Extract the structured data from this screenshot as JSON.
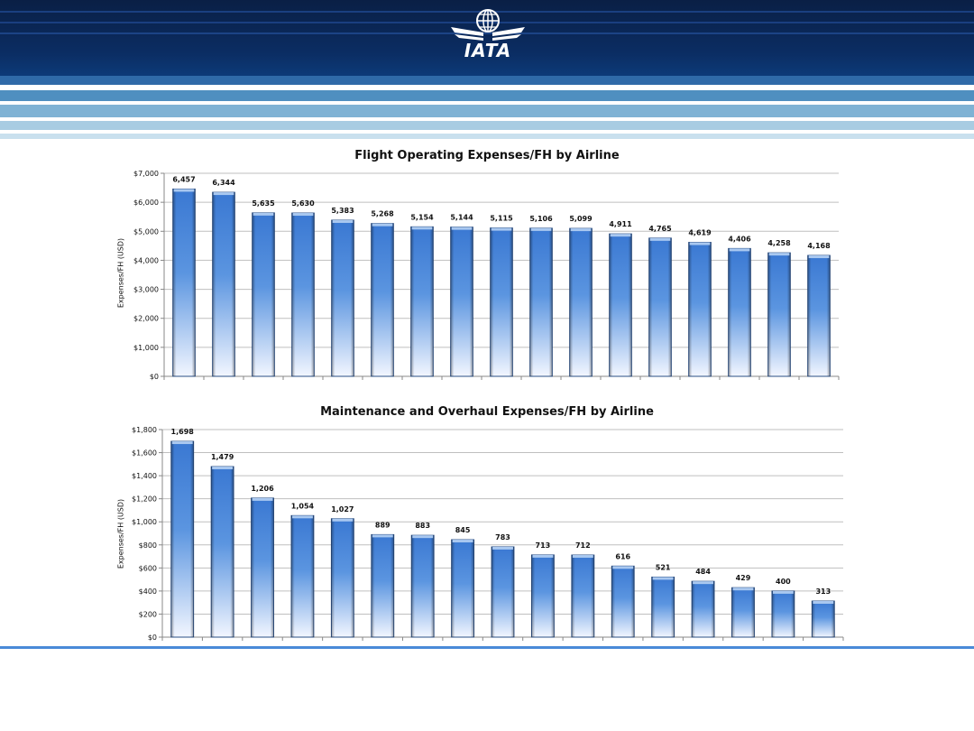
{
  "brand": {
    "logo_text": "IATA",
    "colors": {
      "navy": "#0a2a5e",
      "light_blue": "#9cc3dc",
      "bar": "#3f7fd6",
      "rule": "#4a8ad8"
    }
  },
  "icons": {
    "logo": "globe-wings-logo-icon"
  },
  "chart_data": [
    {
      "type": "bar",
      "title": "Flight Operating Expenses/FH by Airline",
      "xlabel": "",
      "ylabel": "Expenses/FH (USD)",
      "ylim": [
        0,
        7000
      ],
      "yticks": [
        0,
        1000,
        2000,
        3000,
        4000,
        5000,
        6000,
        7000
      ],
      "ytick_labels": [
        "$0",
        "$1,000",
        "$2,000",
        "$3,000",
        "$4,000",
        "$5,000",
        "$6,000",
        "$7,000"
      ],
      "values": [
        6457,
        6344,
        5635,
        5630,
        5383,
        5268,
        5154,
        5144,
        5115,
        5106,
        5099,
        4911,
        4765,
        4619,
        4406,
        4258,
        4168
      ],
      "value_labels": [
        "6,457",
        "6,344",
        "5,635",
        "5,630",
        "5,383",
        "5,268",
        "5,154",
        "5,144",
        "5,115",
        "5,106",
        "5,099",
        "4,911",
        "4,765",
        "4,619",
        "4,406",
        "4,258",
        "4,168"
      ],
      "grid": true,
      "legend": "none"
    },
    {
      "type": "bar",
      "title": "Maintenance and Overhaul Expenses/FH by Airline",
      "xlabel": "",
      "ylabel": "Expenses/FH (USD)",
      "ylim": [
        0,
        1800
      ],
      "yticks": [
        0,
        200,
        400,
        600,
        800,
        1000,
        1200,
        1400,
        1600,
        1800
      ],
      "ytick_labels": [
        "$0",
        "$200",
        "$400",
        "$600",
        "$800",
        "$1,000",
        "$1,200",
        "$1,400",
        "$1,600",
        "$1,800"
      ],
      "values": [
        1698,
        1479,
        1206,
        1054,
        1027,
        889,
        883,
        845,
        783,
        713,
        712,
        616,
        521,
        484,
        429,
        400,
        313
      ],
      "value_labels": [
        "1,698",
        "1,479",
        "1,206",
        "1,054",
        "1,027",
        "889",
        "883",
        "845",
        "783",
        "713",
        "712",
        "616",
        "521",
        "484",
        "429",
        "400",
        "313"
      ],
      "grid": true,
      "legend": "none"
    }
  ]
}
